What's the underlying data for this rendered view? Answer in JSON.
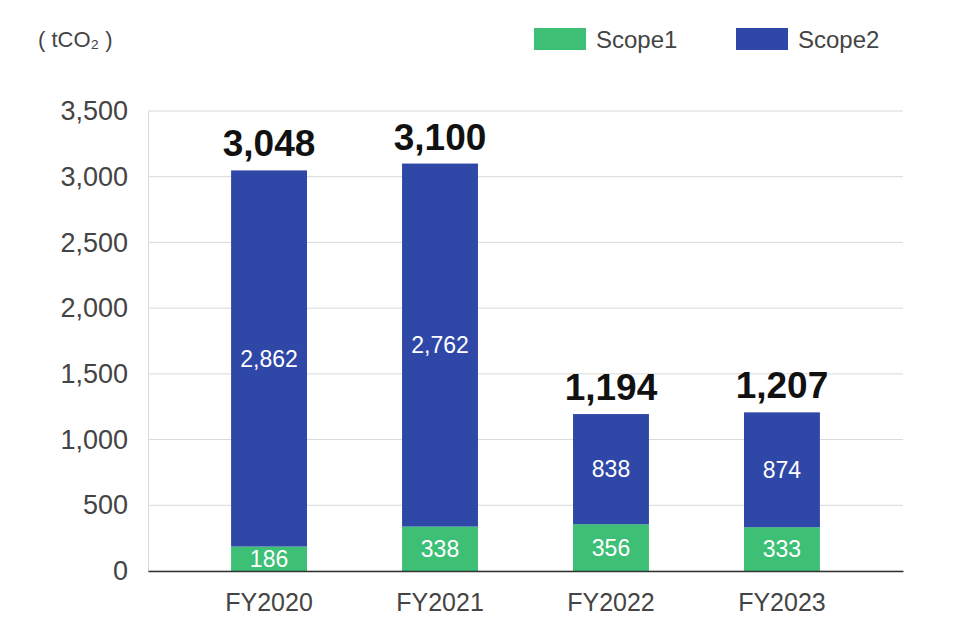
{
  "chart_data": {
    "type": "bar",
    "stacked": true,
    "y_label": "( tCO₂ )",
    "categories": [
      "FY2020",
      "FY2021",
      "FY2022",
      "FY2023"
    ],
    "series": [
      {
        "name": "Scope1",
        "color": "#3dbf76",
        "values": [
          186,
          338,
          356,
          333
        ]
      },
      {
        "name": "Scope2",
        "color": "#2f47a7",
        "values": [
          2862,
          2762,
          838,
          874
        ],
        "value_labels": [
          "2,862",
          "2,762",
          "838",
          "874"
        ]
      }
    ],
    "totals": [
      3048,
      3100,
      1194,
      1207
    ],
    "total_labels": [
      "3,048",
      "3,100",
      "1,194",
      "1,207"
    ],
    "ylim": [
      0,
      3500
    ],
    "yticks": [
      0,
      500,
      {
        "value": 1000,
        "label": "1,000"
      },
      {
        "value": 1500,
        "label": "1,500"
      },
      {
        "value": 2000,
        "label": "2,000"
      },
      {
        "value": 2500,
        "label": "2,500"
      },
      {
        "value": 3000,
        "label": "3,000"
      },
      {
        "value": 3500,
        "label": "3,500"
      }
    ],
    "grid": true,
    "data_labels": true,
    "legend": "upper right"
  }
}
